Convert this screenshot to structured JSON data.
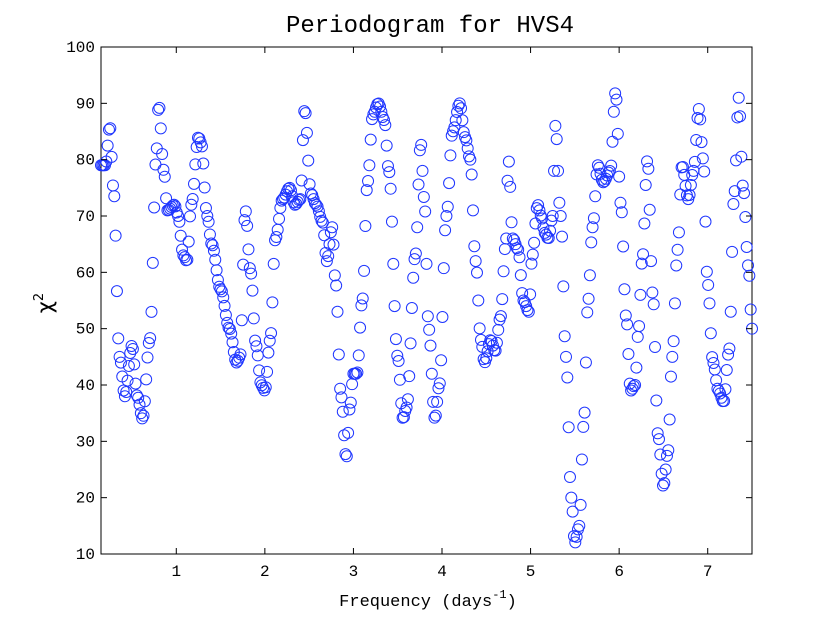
{
  "chart_data": {
    "type": "scatter",
    "title": "Periodogram for HVS4",
    "xlabel": "Frequency (days",
    "xlabel_sup": "-1",
    "xlabel_end": ")",
    "ylabel": "χ",
    "ylabel_sup": "2",
    "xlim": [
      0.15,
      7.5
    ],
    "ylim": [
      10,
      100
    ],
    "xticks": [
      1,
      2,
      3,
      4,
      5,
      6,
      7
    ],
    "yticks": [
      10,
      20,
      30,
      40,
      50,
      60,
      70,
      80,
      90,
      100
    ],
    "marker": "open-circle",
    "color": "#1f36ff",
    "step": 0.015,
    "anchors": [
      [
        0.15,
        79
      ],
      [
        0.2,
        79
      ],
      [
        0.25,
        86
      ],
      [
        0.29,
        75
      ],
      [
        0.36,
        45
      ],
      [
        0.42,
        38
      ],
      [
        0.5,
        47
      ],
      [
        0.56,
        38
      ],
      [
        0.62,
        34
      ],
      [
        0.7,
        48
      ],
      [
        0.78,
        82
      ],
      [
        0.8,
        90
      ],
      [
        0.86,
        78
      ],
      [
        0.9,
        71
      ],
      [
        0.98,
        72
      ],
      [
        1.02,
        70
      ],
      [
        1.08,
        63
      ],
      [
        1.12,
        62
      ],
      [
        1.17,
        72
      ],
      [
        1.25,
        84
      ],
      [
        1.28,
        83
      ],
      [
        1.35,
        70
      ],
      [
        1.4,
        65
      ],
      [
        1.5,
        57
      ],
      [
        1.6,
        50
      ],
      [
        1.68,
        44
      ],
      [
        1.72,
        45
      ],
      [
        1.78,
        71
      ],
      [
        1.84,
        60
      ],
      [
        1.9,
        47
      ],
      [
        1.96,
        40
      ],
      [
        2.0,
        39
      ],
      [
        2.06,
        48
      ],
      [
        2.12,
        66
      ],
      [
        2.2,
        73
      ],
      [
        2.28,
        75
      ],
      [
        2.34,
        72
      ],
      [
        2.4,
        73
      ],
      [
        2.45,
        89
      ],
      [
        2.52,
        74
      ],
      [
        2.58,
        72
      ],
      [
        2.65,
        69
      ],
      [
        2.7,
        62
      ],
      [
        2.76,
        68
      ],
      [
        2.8,
        58
      ],
      [
        2.86,
        38
      ],
      [
        2.92,
        27
      ],
      [
        2.96,
        36
      ],
      [
        3.0,
        42
      ],
      [
        3.04,
        42
      ],
      [
        3.1,
        55
      ],
      [
        3.16,
        76
      ],
      [
        3.22,
        88
      ],
      [
        3.28,
        90
      ],
      [
        3.35,
        87
      ],
      [
        3.4,
        78
      ],
      [
        3.5,
        45
      ],
      [
        3.56,
        34
      ],
      [
        3.6,
        36
      ],
      [
        3.7,
        63
      ],
      [
        3.76,
        83
      ],
      [
        3.8,
        73
      ],
      [
        3.85,
        50
      ],
      [
        3.92,
        34
      ],
      [
        3.97,
        40
      ],
      [
        4.05,
        70
      ],
      [
        4.12,
        85
      ],
      [
        4.2,
        90
      ],
      [
        4.26,
        84
      ],
      [
        4.32,
        80
      ],
      [
        4.38,
        62
      ],
      [
        4.44,
        48
      ],
      [
        4.48,
        44
      ],
      [
        4.55,
        48
      ],
      [
        4.6,
        46
      ],
      [
        4.66,
        52
      ],
      [
        4.72,
        65
      ],
      [
        4.75,
        80
      ],
      [
        4.8,
        66
      ],
      [
        4.86,
        64
      ],
      [
        4.92,
        55
      ],
      [
        4.98,
        53
      ],
      [
        5.02,
        63
      ],
      [
        5.08,
        72
      ],
      [
        5.12,
        70
      ],
      [
        5.16,
        67
      ],
      [
        5.2,
        66
      ],
      [
        5.25,
        70
      ],
      [
        5.28,
        86
      ],
      [
        5.34,
        70
      ],
      [
        5.4,
        45
      ],
      [
        5.46,
        20
      ],
      [
        5.5,
        12
      ],
      [
        5.55,
        15
      ],
      [
        5.6,
        33
      ],
      [
        5.65,
        55
      ],
      [
        5.7,
        68
      ],
      [
        5.76,
        79
      ],
      [
        5.82,
        76
      ],
      [
        5.9,
        78
      ],
      [
        5.96,
        92
      ],
      [
        6.02,
        72
      ],
      [
        6.08,
        52
      ],
      [
        6.13,
        39
      ],
      [
        6.18,
        40
      ],
      [
        6.22,
        50
      ],
      [
        6.26,
        62
      ],
      [
        6.32,
        80
      ],
      [
        6.38,
        56
      ],
      [
        6.44,
        31
      ],
      [
        6.5,
        22
      ],
      [
        6.55,
        28
      ],
      [
        6.6,
        45
      ],
      [
        6.66,
        64
      ],
      [
        6.71,
        79
      ],
      [
        6.78,
        73
      ],
      [
        6.84,
        78
      ],
      [
        6.9,
        89
      ],
      [
        6.95,
        80
      ],
      [
        7.0,
        58
      ],
      [
        7.06,
        44
      ],
      [
        7.12,
        39
      ],
      [
        7.18,
        37
      ],
      [
        7.24,
        46
      ],
      [
        7.3,
        74
      ],
      [
        7.35,
        91
      ],
      [
        7.4,
        75
      ],
      [
        7.46,
        61
      ],
      [
        7.5,
        50
      ]
    ]
  }
}
